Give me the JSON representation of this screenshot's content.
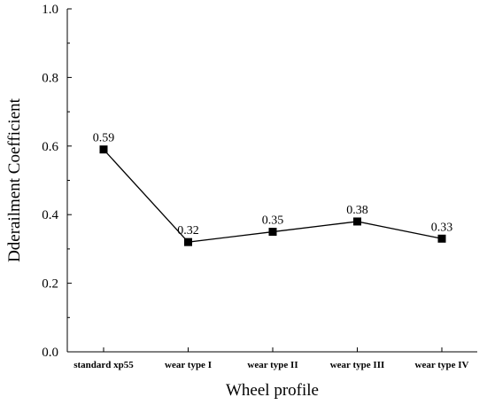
{
  "chart_data": {
    "type": "line",
    "title": "",
    "xlabel": "Wheel profile",
    "ylabel": "Dderailment Coefficient",
    "categories": [
      "standard xp55",
      "wear type I",
      "wear type II",
      "wear type III",
      "wear type IV"
    ],
    "series": [
      {
        "values": [
          0.59,
          0.32,
          0.35,
          0.38,
          0.33
        ]
      }
    ],
    "data_labels": [
      "0.59",
      "0.32",
      "0.35",
      "0.38",
      "0.33"
    ],
    "yticks": [
      "0.0",
      "0.2",
      "0.4",
      "0.6",
      "0.8",
      "1.0"
    ],
    "ylim": [
      0,
      1.0
    ],
    "grid": false,
    "legend": "none",
    "marker": "square",
    "line_color": "#000000"
  }
}
